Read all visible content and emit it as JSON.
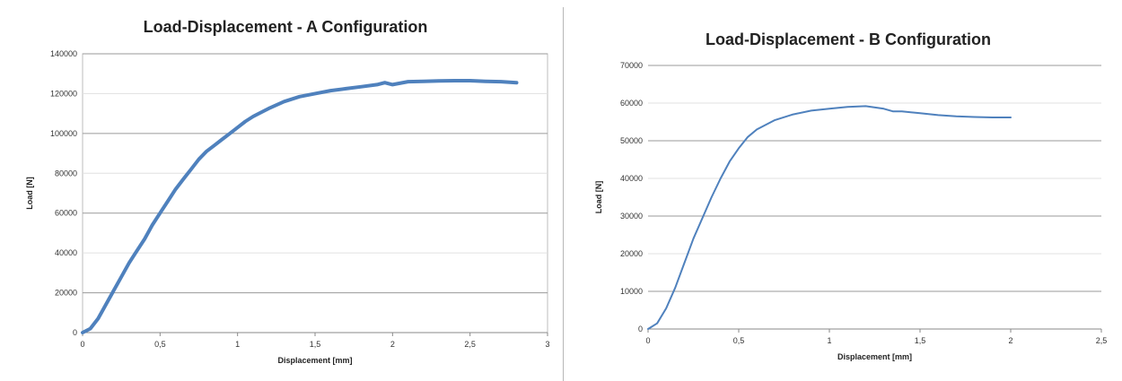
{
  "chart_data": [
    {
      "type": "line",
      "title": "Load-Displacement -  A Configuration",
      "xlabel": "Displacement [mm]",
      "ylabel": "Load [N]",
      "xlim": [
        0,
        3
      ],
      "ylim": [
        0,
        140000
      ],
      "x_ticks": [
        0,
        0.5,
        1,
        1.5,
        2,
        2.5,
        3
      ],
      "x_tick_labels": [
        "0",
        "0,5",
        "1",
        "1,5",
        "2",
        "2,5",
        "3"
      ],
      "y_ticks": [
        0,
        20000,
        40000,
        60000,
        80000,
        100000,
        120000,
        140000
      ],
      "y_tick_labels": [
        "0",
        "20000",
        "40000",
        "60000",
        "80000",
        "100000",
        "120000",
        "140000"
      ],
      "grid": true,
      "legend": "none",
      "color": "#4f81bd",
      "series": [
        {
          "x": [
            0,
            0.05,
            0.1,
            0.15,
            0.2,
            0.25,
            0.3,
            0.35,
            0.4,
            0.45,
            0.5,
            0.55,
            0.6,
            0.65,
            0.7,
            0.75,
            0.8,
            0.85,
            0.9,
            0.95,
            1.0,
            1.05,
            1.1,
            1.15,
            1.2,
            1.3,
            1.4,
            1.5,
            1.6,
            1.7,
            1.8,
            1.9,
            1.95,
            2.0,
            2.1,
            2.2,
            2.3,
            2.4,
            2.5,
            2.6,
            2.7,
            2.8
          ],
          "y": [
            0,
            2000,
            7000,
            14000,
            21000,
            28000,
            35000,
            41000,
            47000,
            54000,
            60000,
            66000,
            72000,
            77000,
            82000,
            87000,
            91000,
            94000,
            97000,
            100000,
            103000,
            106000,
            108500,
            110500,
            112500,
            116000,
            118500,
            120000,
            121500,
            122500,
            123500,
            124500,
            125500,
            124500,
            126000,
            126200,
            126400,
            126500,
            126500,
            126200,
            126000,
            125500
          ]
        }
      ]
    },
    {
      "type": "line",
      "title": "Load-Displacement -  B Configuration",
      "xlabel": "Displacement [mm]",
      "ylabel": "Load [N]",
      "xlim": [
        0,
        2.5
      ],
      "ylim": [
        0,
        70000
      ],
      "x_ticks": [
        0,
        0.5,
        1,
        1.5,
        2,
        2.5
      ],
      "x_tick_labels": [
        "0",
        "0,5",
        "1",
        "1,5",
        "2",
        "2,5"
      ],
      "y_ticks": [
        0,
        10000,
        20000,
        30000,
        40000,
        50000,
        60000,
        70000
      ],
      "y_tick_labels": [
        "0",
        "10000",
        "20000",
        "30000",
        "40000",
        "50000",
        "60000",
        "70000"
      ],
      "grid": true,
      "legend": "none",
      "color": "#4f81bd",
      "series": [
        {
          "x": [
            0,
            0.05,
            0.1,
            0.15,
            0.2,
            0.25,
            0.3,
            0.35,
            0.4,
            0.45,
            0.5,
            0.55,
            0.6,
            0.7,
            0.8,
            0.9,
            1.0,
            1.1,
            1.2,
            1.3,
            1.35,
            1.4,
            1.5,
            1.6,
            1.7,
            1.8,
            1.9,
            2.0
          ],
          "y": [
            0,
            1500,
            5500,
            11000,
            17500,
            24000,
            29500,
            35000,
            40000,
            44500,
            48000,
            51000,
            53000,
            55500,
            57000,
            58000,
            58500,
            59000,
            59200,
            58500,
            57800,
            57800,
            57300,
            56800,
            56500,
            56300,
            56200,
            56200
          ]
        }
      ]
    }
  ]
}
